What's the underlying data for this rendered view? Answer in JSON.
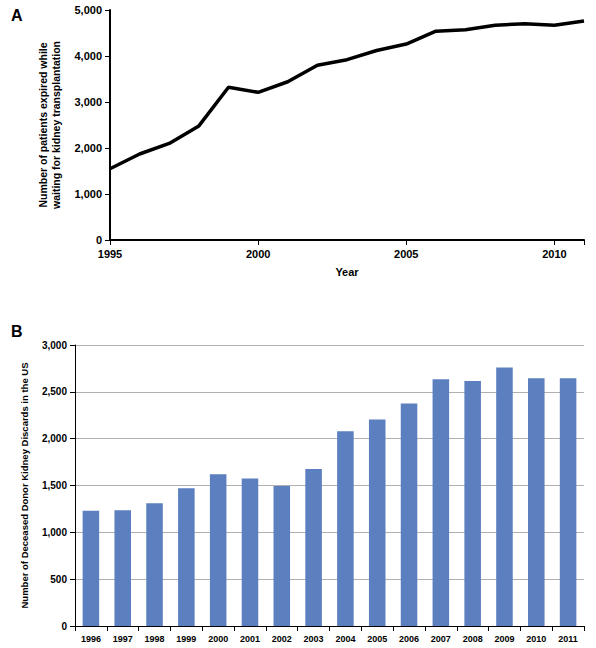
{
  "chart_data": [
    {
      "type": "line",
      "title": "A",
      "x_label": "Year",
      "y_label": "Number of patients expired while\nwaiting for kidney transplantation",
      "x": [
        1995,
        1996,
        1997,
        1998,
        1999,
        2000,
        2001,
        2002,
        2003,
        2004,
        2005,
        2006,
        2007,
        2008,
        2009,
        2010,
        2011
      ],
      "values": [
        1550,
        1870,
        2100,
        2480,
        3320,
        3210,
        3440,
        3800,
        3920,
        4120,
        4260,
        4540,
        4570,
        4670,
        4700,
        4670,
        4760
      ],
      "color": "#000000",
      "xlim": [
        1995,
        2011
      ],
      "xticks": [
        1995,
        2000,
        2005,
        2010
      ],
      "ylim": [
        0,
        5000
      ],
      "yticks": [
        0,
        {
          "value": 1000,
          "label": "1,000"
        },
        {
          "value": 2000,
          "label": "2,000"
        },
        {
          "value": 3000,
          "label": "3,000"
        },
        {
          "value": 4000,
          "label": "4,000"
        },
        {
          "value": 5000,
          "label": "5,000"
        }
      ],
      "grid": false
    },
    {
      "type": "bar",
      "title": "B",
      "y_label": "Number of Deceased Donor Kidney Discards in the US",
      "categories": [
        "1996",
        "1997",
        "1998",
        "1999",
        "2000",
        "2001",
        "2002",
        "2003",
        "2004",
        "2005",
        "2006",
        "2007",
        "2008",
        "2009",
        "2010",
        "2011"
      ],
      "values": [
        1230,
        1235,
        1310,
        1470,
        1620,
        1575,
        1495,
        1675,
        2080,
        2205,
        2375,
        2635,
        2615,
        2760,
        2645,
        2645
      ],
      "color": "#5b7fbf",
      "ylim": [
        0,
        3000
      ],
      "yticks": [
        0,
        500,
        {
          "value": 1000,
          "label": "1,000"
        },
        {
          "value": 1500,
          "label": "1,500"
        },
        {
          "value": 2000,
          "label": "2,000"
        },
        {
          "value": 2500,
          "label": "2,500"
        },
        {
          "value": 3000,
          "label": "3,000"
        }
      ],
      "grid": true
    }
  ]
}
